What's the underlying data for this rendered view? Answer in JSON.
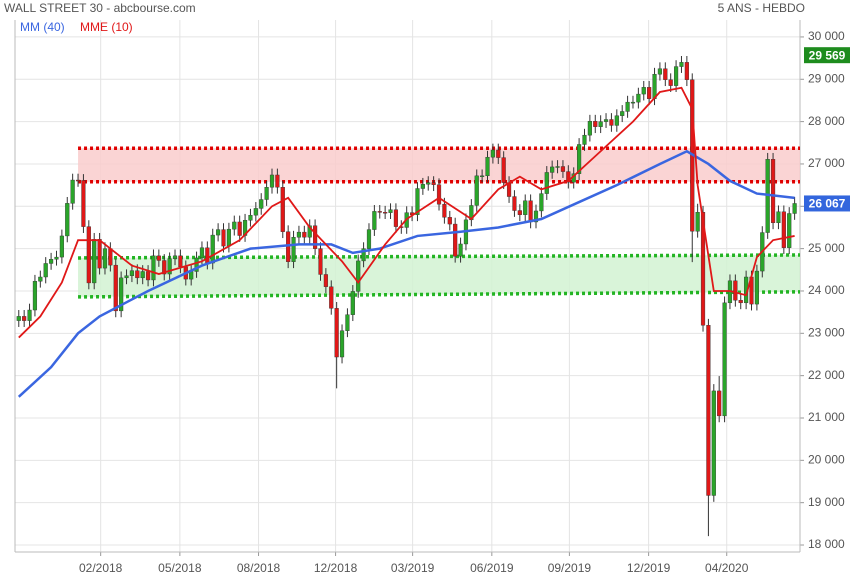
{
  "chart_data": {
    "type": "candlestick",
    "title": "WALL STREET 30 - abcbourse.com",
    "subtitle": "5 ANS - HEBDO",
    "up_color": "#2aa52a",
    "down_color": "#e01818",
    "open": [
      23300,
      23400,
      23300,
      23550,
      24230,
      24330,
      24650,
      24750,
      24800,
      25300,
      26070,
      26620,
      26610,
      25520,
      24190,
      25220,
      24540,
      25000,
      24610,
      23530,
      24310,
      24360,
      24480,
      24310,
      24460,
      24260,
      24830,
      24720,
      24400,
      24760,
      24830,
      24570,
      24280,
      24460,
      24780,
      25020,
      24660,
      25320,
      25450,
      25060,
      25460,
      25630,
      25310,
      25670,
      25790,
      25950,
      26160,
      26450,
      26740,
      26450,
      25400,
      24690,
      25270,
      25390,
      25270,
      25540,
      25000,
      24390,
      24100,
      23590,
      22440,
      23060,
      23440,
      23990,
      24710,
      25000,
      25450,
      25880,
      25860,
      25850,
      25920,
      25520,
      25500,
      25850,
      25800,
      26420,
      26520,
      26560,
      26510,
      26050,
      25740,
      25580,
      24820,
      25110,
      25680,
      26020,
      26720,
      26720,
      27160,
      27330,
      27150,
      26560,
      26230,
      25900,
      25800,
      26130,
      25630,
      25890,
      26300,
      26800,
      26930,
      26940,
      26820,
      26570,
      26770,
      27460,
      27680,
      28010,
      27880,
      28000,
      28050,
      27910,
      28140,
      28240,
      28460,
      28460,
      28650,
      28810,
      28540,
      29120,
      29250,
      28990,
      28850,
      29300,
      29400,
      28990,
      25410,
      25860,
      23190,
      19170,
      21640,
      21050,
      23720,
      24240,
      23780,
      23720,
      24330,
      23690,
      24470,
      25380,
      27110,
      25610,
      25870,
      25020,
      25830
    ],
    "high": [
      23550,
      23550,
      23700,
      24380,
      24480,
      24800,
      24900,
      24950,
      25450,
      26220,
      26770,
      26770,
      26760,
      25670,
      25370,
      25370,
      25150,
      25150,
      24760,
      24460,
      24510,
      24630,
      24630,
      24610,
      24610,
      24980,
      24980,
      24870,
      24910,
      24980,
      24980,
      24720,
      24610,
      24930,
      25170,
      25170,
      25470,
      25600,
      25600,
      25610,
      25780,
      25780,
      25820,
      25940,
      26100,
      26310,
      26600,
      26890,
      26890,
      26600,
      25550,
      25420,
      25540,
      25540,
      25690,
      25690,
      25150,
      24540,
      24250,
      23740,
      23210,
      23590,
      24140,
      24860,
      25150,
      25600,
      26030,
      26030,
      26010,
      26070,
      26070,
      25670,
      26000,
      26000,
      26570,
      26670,
      26710,
      26710,
      26660,
      26200,
      25890,
      25730,
      25260,
      25830,
      26170,
      26870,
      26870,
      27310,
      27480,
      27480,
      27300,
      26710,
      26380,
      26050,
      26280,
      26280,
      26040,
      26450,
      26950,
      27080,
      27090,
      27090,
      26970,
      26920,
      27610,
      27830,
      28160,
      28160,
      28150,
      28200,
      28200,
      28290,
      28390,
      28610,
      28610,
      28800,
      28960,
      28960,
      29270,
      29400,
      29400,
      29140,
      29450,
      29550,
      29550,
      29140,
      26060,
      26010,
      23340,
      21800,
      21990,
      23870,
      24390,
      24390,
      23930,
      24480,
      24480,
      24620,
      25530,
      27260,
      27260,
      26020,
      26020,
      25980,
      26220
    ],
    "low": [
      23150,
      23150,
      23150,
      23400,
      24080,
      24180,
      24500,
      24600,
      24650,
      25150,
      25920,
      26460,
      25370,
      24040,
      24040,
      24390,
      24390,
      24460,
      23380,
      23380,
      24160,
      24210,
      24160,
      24160,
      24110,
      24110,
      24570,
      24250,
      24250,
      24610,
      24420,
      24130,
      24130,
      24310,
      24630,
      24510,
      24510,
      25170,
      24910,
      24910,
      25310,
      25160,
      25160,
      25520,
      25640,
      25800,
      26010,
      26300,
      26300,
      25250,
      24540,
      24540,
      25120,
      25120,
      25120,
      24850,
      24240,
      23950,
      23440,
      21700,
      22290,
      22910,
      23290,
      23840,
      24560,
      24850,
      25300,
      25710,
      25700,
      25700,
      25370,
      25350,
      25350,
      25650,
      25650,
      26270,
      26370,
      26360,
      25900,
      25590,
      25430,
      24670,
      24670,
      24960,
      25530,
      25870,
      26570,
      26570,
      27010,
      27000,
      26410,
      26080,
      25750,
      25650,
      25650,
      25480,
      25480,
      25740,
      26150,
      26650,
      26780,
      26670,
      26420,
      26420,
      26620,
      27310,
      27530,
      27730,
      27730,
      27850,
      27760,
      27760,
      27990,
      28090,
      28310,
      28310,
      28500,
      28390,
      28390,
      28970,
      28840,
      28700,
      28700,
      29150,
      28840,
      24680,
      25260,
      23040,
      18210,
      19020,
      20900,
      20900,
      23570,
      23630,
      23570,
      23570,
      23540,
      23540,
      24320,
      25230,
      25460,
      25460,
      24870,
      24870,
      25680
    ],
    "close": [
      23400,
      23300,
      23550,
      24230,
      24330,
      24650,
      24750,
      24800,
      25300,
      26070,
      26620,
      26610,
      25520,
      24190,
      25220,
      24540,
      25000,
      24610,
      23530,
      24310,
      24360,
      24480,
      24310,
      24460,
      24260,
      24830,
      24720,
      24400,
      24760,
      24830,
      24570,
      24280,
      24460,
      24780,
      25020,
      24660,
      25320,
      25450,
      25060,
      25460,
      25630,
      25310,
      25670,
      25790,
      25950,
      26160,
      26450,
      26740,
      26450,
      25400,
      24690,
      25270,
      25390,
      25270,
      25540,
      25000,
      24390,
      24100,
      23590,
      22440,
      23060,
      23440,
      23990,
      24710,
      25000,
      25450,
      25880,
      25860,
      25850,
      25920,
      25520,
      25500,
      25850,
      25800,
      26420,
      26520,
      26560,
      26510,
      26050,
      25740,
      25580,
      24820,
      25110,
      25680,
      26020,
      26720,
      26720,
      27160,
      27330,
      27150,
      26560,
      26230,
      25900,
      25800,
      26130,
      25630,
      25890,
      26300,
      26800,
      26930,
      26940,
      26820,
      26570,
      26770,
      27460,
      27680,
      28010,
      27880,
      28000,
      28050,
      27910,
      28140,
      28240,
      28460,
      28460,
      28650,
      28810,
      28540,
      29120,
      29250,
      28990,
      28850,
      29300,
      29400,
      28990,
      25410,
      25860,
      23190,
      19170,
      21640,
      21050,
      23720,
      24240,
      23780,
      23720,
      24330,
      23690,
      24470,
      25380,
      27110,
      25610,
      25870,
      25020,
      25830,
      26067
    ],
    "series": [
      {
        "name": "MM (40)",
        "color": "#3a66e0",
        "x": [
          0,
          6,
          11,
          15,
          24,
          34,
          43,
          52,
          58,
          62,
          67,
          74,
          82,
          89,
          97,
          104,
          111,
          119,
          124,
          128,
          132,
          137,
          144
        ],
        "values": [
          21500,
          22200,
          23000,
          23400,
          24000,
          24600,
          25000,
          25100,
          25100,
          24900,
          25000,
          25300,
          25400,
          25500,
          25700,
          26100,
          26500,
          27000,
          27300,
          27000,
          26600,
          26300,
          26200
        ]
      },
      {
        "name": "MME (10)",
        "color": "#e01818",
        "x": [
          0,
          4,
          8,
          11,
          15,
          21,
          26,
          34,
          41,
          47,
          50,
          54,
          60,
          63,
          68,
          72,
          78,
          84,
          89,
          93,
          97,
          102,
          108,
          114,
          119,
          123,
          125,
          126,
          129,
          132,
          135,
          137,
          140,
          144
        ],
        "values": [
          22900,
          23400,
          24200,
          25200,
          25200,
          24600,
          24400,
          24700,
          25200,
          26000,
          26200,
          25500,
          24700,
          24200,
          25100,
          25700,
          26200,
          25700,
          26400,
          26700,
          26400,
          26600,
          27300,
          28000,
          28700,
          28800,
          28300,
          26500,
          24000,
          24000,
          23900,
          24800,
          25200,
          25300
        ]
      }
    ],
    "zones": [
      {
        "color": "#f9cccc",
        "line_color": "#e00000",
        "x": [
          11,
          145
        ],
        "top": [
          27370,
          27370
        ],
        "bottom": [
          26580,
          26580
        ]
      },
      {
        "color": "#d2f2d2",
        "line_color": "#22b422",
        "x": [
          11,
          145
        ],
        "top": [
          24780,
          24850
        ],
        "bottom": [
          23860,
          23980
        ]
      }
    ],
    "price_tags": [
      {
        "value": 29569,
        "label": "29 569",
        "color": "#1e8c1e"
      },
      {
        "value": 26067,
        "label": "26 067",
        "color": "#3366dd"
      }
    ],
    "xlim": [
      -0.7,
      145
    ],
    "xticks": [
      {
        "value": 15.2,
        "label": "02/2018"
      },
      {
        "value": 29.9,
        "label": "05/2018"
      },
      {
        "value": 44.5,
        "label": "08/2018"
      },
      {
        "value": 58.8,
        "label": "12/2018"
      },
      {
        "value": 73.1,
        "label": "03/2019"
      },
      {
        "value": 87.8,
        "label": "06/2019"
      },
      {
        "value": 102.2,
        "label": "09/2019"
      },
      {
        "value": 116.9,
        "label": "12/2019"
      },
      {
        "value": 131.4,
        "label": "04/2020"
      }
    ],
    "ylim": [
      17835,
      30400
    ],
    "yticks": [
      {
        "value": 18000,
        "label": "18 000"
      },
      {
        "value": 19000,
        "label": "19 000"
      },
      {
        "value": 20000,
        "label": "20 000"
      },
      {
        "value": 21000,
        "label": "21 000"
      },
      {
        "value": 22000,
        "label": "22 000"
      },
      {
        "value": 23000,
        "label": "23 000"
      },
      {
        "value": 24000,
        "label": "24 000"
      },
      {
        "value": 25000,
        "label": "25 000"
      },
      {
        "value": 26000,
        "label": "26 000"
      },
      {
        "value": 27000,
        "label": "27 000"
      },
      {
        "value": 28000,
        "label": "28 000"
      },
      {
        "value": 29000,
        "label": "29 000"
      },
      {
        "value": 30000,
        "label": "30 000"
      }
    ],
    "grid": true
  }
}
